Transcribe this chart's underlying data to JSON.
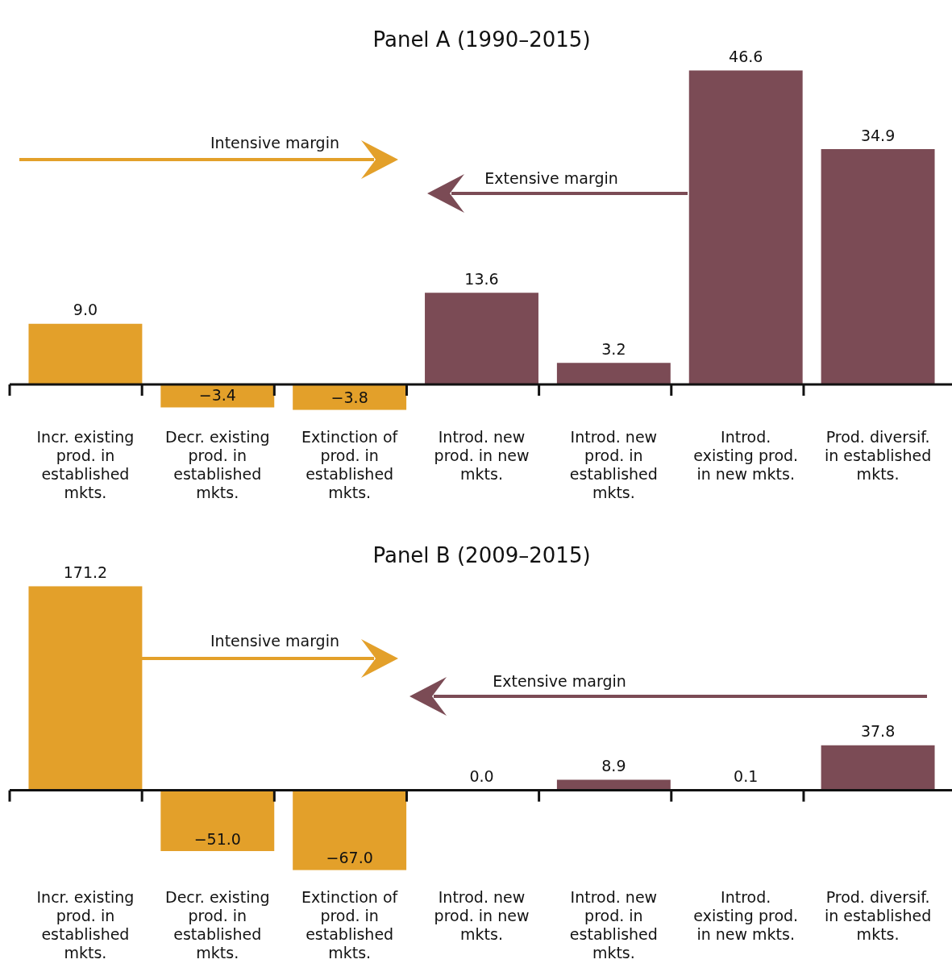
{
  "chart_data": [
    {
      "type": "bar",
      "title": "Panel A (1990–2015)",
      "categories": [
        "Incr. existing prod. in established mkts.",
        "Decr. existing prod. in established mkts.",
        "Extinction of prod. in established mkts.",
        "Introd. new prod. in new mkts.",
        "Introd. new prod. in established mkts.",
        "Introd. existing prod. in new mkts.",
        "Prod. diversif. in established mkts."
      ],
      "values": [
        9.0,
        -3.4,
        -3.8,
        13.6,
        3.2,
        46.6,
        34.9
      ],
      "value_labels": [
        "9.0",
        "−3.4",
        "−3.8",
        "13.6",
        "3.2",
        "46.6",
        "34.9"
      ],
      "colors": [
        "#e3a02a",
        "#e3a02a",
        "#e3a02a",
        "#7b4b55",
        "#7b4b55",
        "#7b4b55",
        "#7b4b55"
      ],
      "annotations": [
        "Intensive margin",
        "Extensive margin"
      ]
    },
    {
      "type": "bar",
      "title": "Panel B (2009–2015)",
      "categories": [
        "Incr. existing prod. in established mkts.",
        "Decr. existing prod. in established mkts.",
        "Extinction of prod. in established mkts.",
        "Introd. new prod. in new mkts.",
        "Introd. new prod. in established mkts.",
        "Introd. existing prod. in new mkts.",
        "Prod. diversif. in established mkts."
      ],
      "values": [
        171.2,
        -51.0,
        -67.0,
        0.0,
        8.9,
        0.1,
        37.8
      ],
      "value_labels": [
        "171.2",
        "−51.0",
        "−67.0",
        "0.0",
        "8.9",
        "0.1",
        "37.8"
      ],
      "colors": [
        "#e3a02a",
        "#e3a02a",
        "#e3a02a",
        "#7b4b55",
        "#7b4b55",
        "#7b4b55",
        "#7b4b55"
      ],
      "annotations": [
        "Intensive margin",
        "Extensive margin"
      ]
    }
  ]
}
